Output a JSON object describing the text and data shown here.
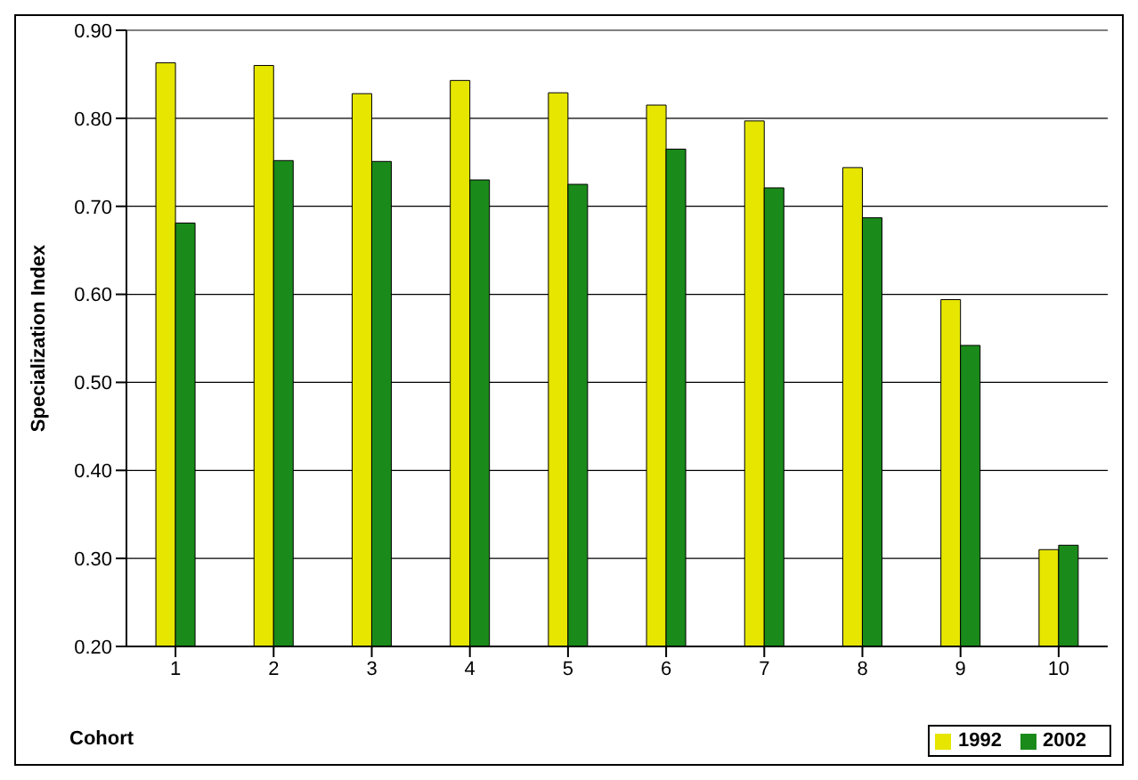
{
  "chart_data": {
    "type": "bar",
    "categories": [
      "1",
      "2",
      "3",
      "4",
      "5",
      "6",
      "7",
      "8",
      "9",
      "10"
    ],
    "series": [
      {
        "name": "1992",
        "color": "#e6e600",
        "values": [
          0.863,
          0.86,
          0.828,
          0.843,
          0.829,
          0.815,
          0.797,
          0.744,
          0.594,
          0.31
        ]
      },
      {
        "name": "2002",
        "color": "#1a8a1a",
        "values": [
          0.681,
          0.752,
          0.751,
          0.73,
          0.725,
          0.765,
          0.721,
          0.687,
          0.542,
          0.315
        ]
      }
    ],
    "xlabel": "Cohort",
    "ylabel": "Specialization Index",
    "ylim": [
      0.2,
      0.9
    ],
    "yticks": [
      {
        "value": 0.2,
        "label": "0.20"
      },
      {
        "value": 0.3,
        "label": "0.30"
      },
      {
        "value": 0.4,
        "label": "0.40"
      },
      {
        "value": 0.5,
        "label": "0.50"
      },
      {
        "value": 0.6,
        "label": "0.60"
      },
      {
        "value": 0.7,
        "label": "0.70"
      },
      {
        "value": 0.8,
        "label": "0.80"
      },
      {
        "value": 0.9,
        "label": "0.90"
      }
    ],
    "grid": "y",
    "legend": "bottom right"
  }
}
